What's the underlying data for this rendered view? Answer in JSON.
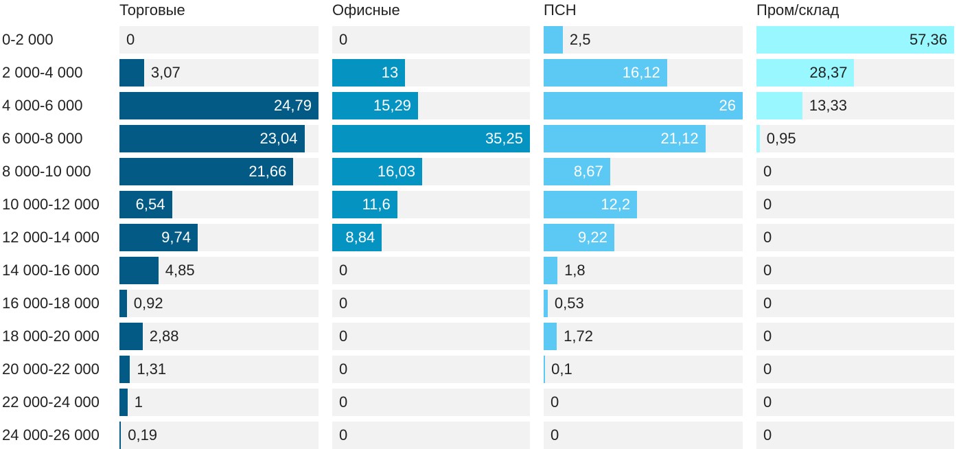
{
  "chart_data": {
    "type": "bar",
    "categories": [
      "0-2 000",
      "2 000-4 000",
      "4 000-6 000",
      "6 000-8 000",
      "8 000-10 000",
      "10 000-12 000",
      "12 000-14 000",
      "14 000-16 000",
      "16 000-18 000",
      "18 000-20 000",
      "20 000-22 000",
      "22 000-24 000",
      "24 000-26 000"
    ],
    "series": [
      {
        "name": "Торговые",
        "color": "#035a84",
        "max": 24.79,
        "values": [
          0,
          3.07,
          24.79,
          23.04,
          21.66,
          6.54,
          9.74,
          4.85,
          0.92,
          2.88,
          1.31,
          1,
          0.19
        ],
        "labels": [
          "0",
          "3,07",
          "24,79",
          "23,04",
          "21,66",
          "6,54",
          "9,74",
          "4,85",
          "0,92",
          "2,88",
          "1,31",
          "1",
          "0,19"
        ]
      },
      {
        "name": "Офисные",
        "color": "#0593c2",
        "max": 35.25,
        "values": [
          0,
          13,
          15.29,
          35.25,
          16.03,
          11.6,
          8.84,
          0,
          0,
          0,
          0,
          0,
          0
        ],
        "labels": [
          "0",
          "13",
          "15,29",
          "35,25",
          "16,03",
          "11,6",
          "8,84",
          "0",
          "0",
          "0",
          "0",
          "0",
          "0"
        ]
      },
      {
        "name": "ПСН",
        "color": "#5cc8f4",
        "max": 26,
        "values": [
          2.5,
          16.12,
          26,
          21.12,
          8.67,
          12.2,
          9.22,
          1.8,
          0.53,
          1.72,
          0.1,
          0,
          0
        ],
        "labels": [
          "2,5",
          "16,12",
          "26",
          "21,12",
          "8,67",
          "12,2",
          "9,22",
          "1,8",
          "0,53",
          "1,72",
          "0,1",
          "0",
          "0"
        ]
      },
      {
        "name": "Пром/склад",
        "color": "#99f8ff",
        "max": 57.36,
        "values": [
          57.36,
          28.37,
          13.33,
          0.95,
          0,
          0,
          0,
          0,
          0,
          0,
          0,
          0,
          0
        ],
        "labels": [
          "57,36",
          "28,37",
          "13,33",
          "0,95",
          "0",
          "0",
          "0",
          "0",
          "0",
          "0",
          "0",
          "0",
          "0"
        ]
      }
    ],
    "track_color": "#f2f2f2",
    "title": "",
    "xlabel": "",
    "ylabel": ""
  }
}
